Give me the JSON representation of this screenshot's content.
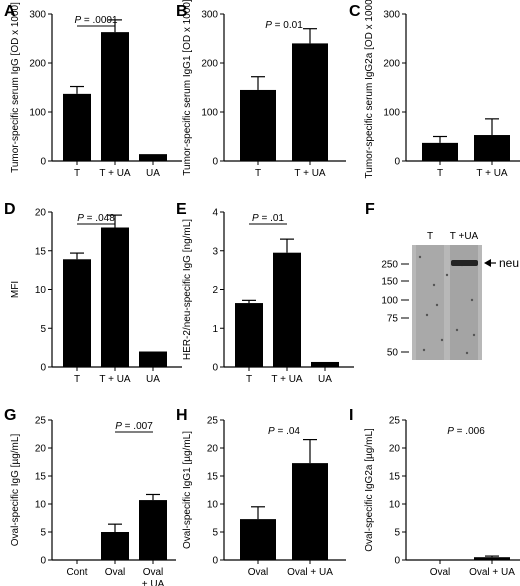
{
  "chart_data": [
    {
      "panel": "A",
      "type": "bar",
      "ylabel": "Tumor-specific serum IgG [OD x 1000]",
      "categories": [
        "T",
        "T + UA",
        "UA"
      ],
      "values": [
        137,
        263,
        14
      ],
      "errors": [
        15,
        25,
        0
      ],
      "ylim": [
        0,
        300
      ],
      "yticks": [
        0,
        100,
        200,
        300
      ],
      "annotation": {
        "text": "P = .0001",
        "from": 0,
        "to": 1,
        "bracket": true
      }
    },
    {
      "panel": "B",
      "type": "bar",
      "ylabel": "Tumor-specific serum IgG1 [OD x 1000]",
      "categories": [
        "T",
        "T + UA"
      ],
      "values": [
        145,
        240
      ],
      "errors": [
        27,
        30
      ],
      "ylim": [
        0,
        300
      ],
      "yticks": [
        0,
        100,
        200,
        300
      ],
      "annotation": {
        "text": "P = 0.01",
        "from": 0,
        "to": 1,
        "bracket": false
      }
    },
    {
      "panel": "C",
      "type": "bar",
      "ylabel": "Tumor-specific serum IgG2a [OD x 1000]",
      "categories": [
        "T",
        "T + UA"
      ],
      "values": [
        37,
        53
      ],
      "errors": [
        13,
        33
      ],
      "ylim": [
        0,
        300
      ],
      "yticks": [
        0,
        100,
        200,
        300
      ]
    },
    {
      "panel": "D",
      "type": "bar",
      "ylabel": "MFI",
      "categories": [
        "T",
        "T + UA",
        "UA"
      ],
      "values": [
        13.9,
        18,
        2
      ],
      "errors": [
        0.8,
        1.6,
        0
      ],
      "ylim": [
        0,
        20
      ],
      "yticks": [
        0,
        5,
        10,
        15,
        20
      ],
      "annotation": {
        "text": "P = .048",
        "from": 0,
        "to": 1,
        "bracket": true
      }
    },
    {
      "panel": "E",
      "type": "bar",
      "ylabel": "HER-2/neu-specific IgG [ng/mL]",
      "categories": [
        "T",
        "T + UA",
        "UA"
      ],
      "values": [
        1.65,
        2.95,
        0.13
      ],
      "errors": [
        0.07,
        0.35,
        0
      ],
      "ylim": [
        0,
        4
      ],
      "yticks": [
        0,
        1,
        2,
        3,
        4
      ],
      "annotation": {
        "text": "P = .01",
        "from": 0,
        "to": 1,
        "bracket": true
      }
    },
    {
      "panel": "G",
      "type": "bar",
      "ylabel": "Oval-specific IgG [µg/mL]",
      "categories": [
        "Cont",
        "Oval",
        "Oval\n+ UA"
      ],
      "values": [
        0,
        5,
        10.7
      ],
      "errors": [
        0,
        1.4,
        1
      ],
      "ylim": [
        0,
        25
      ],
      "yticks": [
        0,
        5,
        10,
        15,
        20,
        25
      ],
      "annotation": {
        "text": "P = .007",
        "from": 1,
        "to": 2,
        "bracket": true
      }
    },
    {
      "panel": "H",
      "type": "bar",
      "ylabel": "Oval-specific IgG1 [µg/mL]",
      "categories": [
        "Oval",
        "Oval + UA"
      ],
      "values": [
        7.3,
        17.3
      ],
      "errors": [
        2.2,
        4.2
      ],
      "ylim": [
        0,
        25
      ],
      "yticks": [
        0,
        5,
        10,
        15,
        20,
        25
      ],
      "annotation": {
        "text": "P = .04",
        "from": 0,
        "to": 1,
        "bracket": false
      }
    },
    {
      "panel": "I",
      "type": "bar",
      "ylabel": "Oval-specific IgG2a [µg/mL]",
      "categories": [
        "Oval",
        "Oval + UA"
      ],
      "values": [
        0,
        0.5
      ],
      "errors": [
        0,
        0.2
      ],
      "ylim": [
        0,
        25
      ],
      "yticks": [
        0,
        5,
        10,
        15,
        20,
        25
      ],
      "annotation": {
        "text": "P = .006",
        "from": 0,
        "to": 1,
        "bracket": false
      }
    }
  ],
  "blot": {
    "panel": "F",
    "lanes": [
      "T",
      "T +UA"
    ],
    "markers": [
      "250",
      "150",
      "100",
      "75",
      "50"
    ],
    "band_label": "neu"
  }
}
